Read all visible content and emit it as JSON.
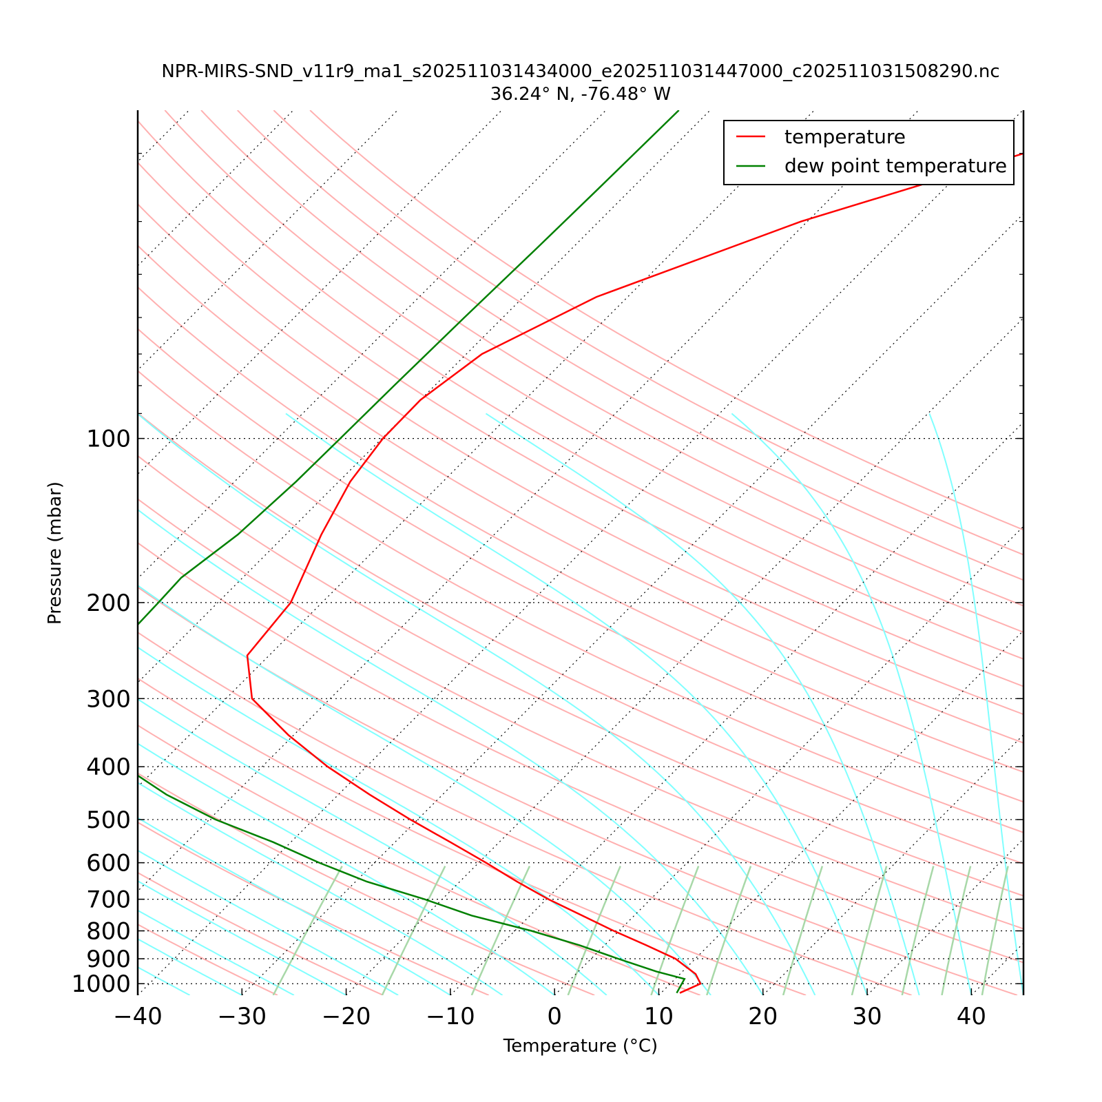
{
  "chart_data": {
    "type": "line",
    "title": "NPR-MIRS-SND_v11r9_ma1_s202511031434000_e202511031447000_c202511031508290.nc",
    "subtitle": "36.24° N, -76.48° W",
    "xlabel": "Temperature (°C)",
    "ylabel": "Pressure (mbar)",
    "xlim": [
      -40,
      45
    ],
    "ylim": [
      1050,
      25
    ],
    "yscale": "log",
    "skew": true,
    "xticks": [
      -40,
      -30,
      -20,
      -10,
      0,
      10,
      20,
      30,
      40
    ],
    "xtick_labels": [
      "−40",
      "−30",
      "−20",
      "−10",
      "0",
      "10",
      "20",
      "30",
      "40"
    ],
    "yticks": [
      100,
      200,
      300,
      400,
      500,
      600,
      700,
      800,
      900,
      1000
    ],
    "ytick_labels": [
      "100",
      "200",
      "300",
      "400",
      "500",
      "600",
      "700",
      "800",
      "900",
      "1000"
    ],
    "grid": "isobars dotted",
    "legend": {
      "position": "top-right",
      "entries": [
        {
          "label": "temperature",
          "color": "#ff0000"
        },
        {
          "label": "dew point temperature",
          "color": "#008000"
        }
      ]
    },
    "series": [
      {
        "name": "temperature",
        "color": "#ff0000",
        "pressure": [
          1040,
          1000,
          960,
          900,
          850,
          800,
          750,
          700,
          650,
          600,
          550,
          500,
          450,
          400,
          350,
          300,
          250,
          200,
          150,
          120,
          100,
          85,
          70,
          55,
          40,
          29
        ],
        "temp": [
          11.8,
          12.9,
          11.5,
          8.1,
          4.0,
          -0.5,
          -5.0,
          -9.8,
          -14.5,
          -19.3,
          -24.7,
          -30.7,
          -37.0,
          -43.7,
          -50.5,
          -57.5,
          -62.1,
          -63.0,
          -66.6,
          -68.9,
          -69.9,
          -70.0,
          -68.5,
          -63.0,
          -50.6,
          -34.0
        ]
      },
      {
        "name": "dew point temperature",
        "color": "#008000",
        "pressure": [
          1040,
          980,
          950,
          900,
          850,
          800,
          750,
          700,
          650,
          600,
          550,
          500,
          450,
          400,
          350,
          320,
          300,
          270,
          250,
          200,
          180,
          150,
          120,
          100,
          80,
          60,
          45,
          35,
          25
        ],
        "temp": [
          11.5,
          10.9,
          7.5,
          2.6,
          -2.4,
          -8.4,
          -15.6,
          -21.7,
          -28.9,
          -35.3,
          -41.7,
          -49.4,
          -56.5,
          -63.2,
          -69.2,
          -73.5,
          -75.5,
          -76.6,
          -75.4,
          -75.7,
          -75.9,
          -74.6,
          -74.1,
          -74.0,
          -73.9,
          -73.7,
          -73.4,
          -73.2,
          -73.0
        ]
      }
    ],
    "background_lines": {
      "dry_adiabats_color": "#ffb0b0",
      "moist_adiabats_color": "#80ffff",
      "mixing_ratio_color": "#a8d8a8",
      "isotherms": "dotted black"
    }
  }
}
